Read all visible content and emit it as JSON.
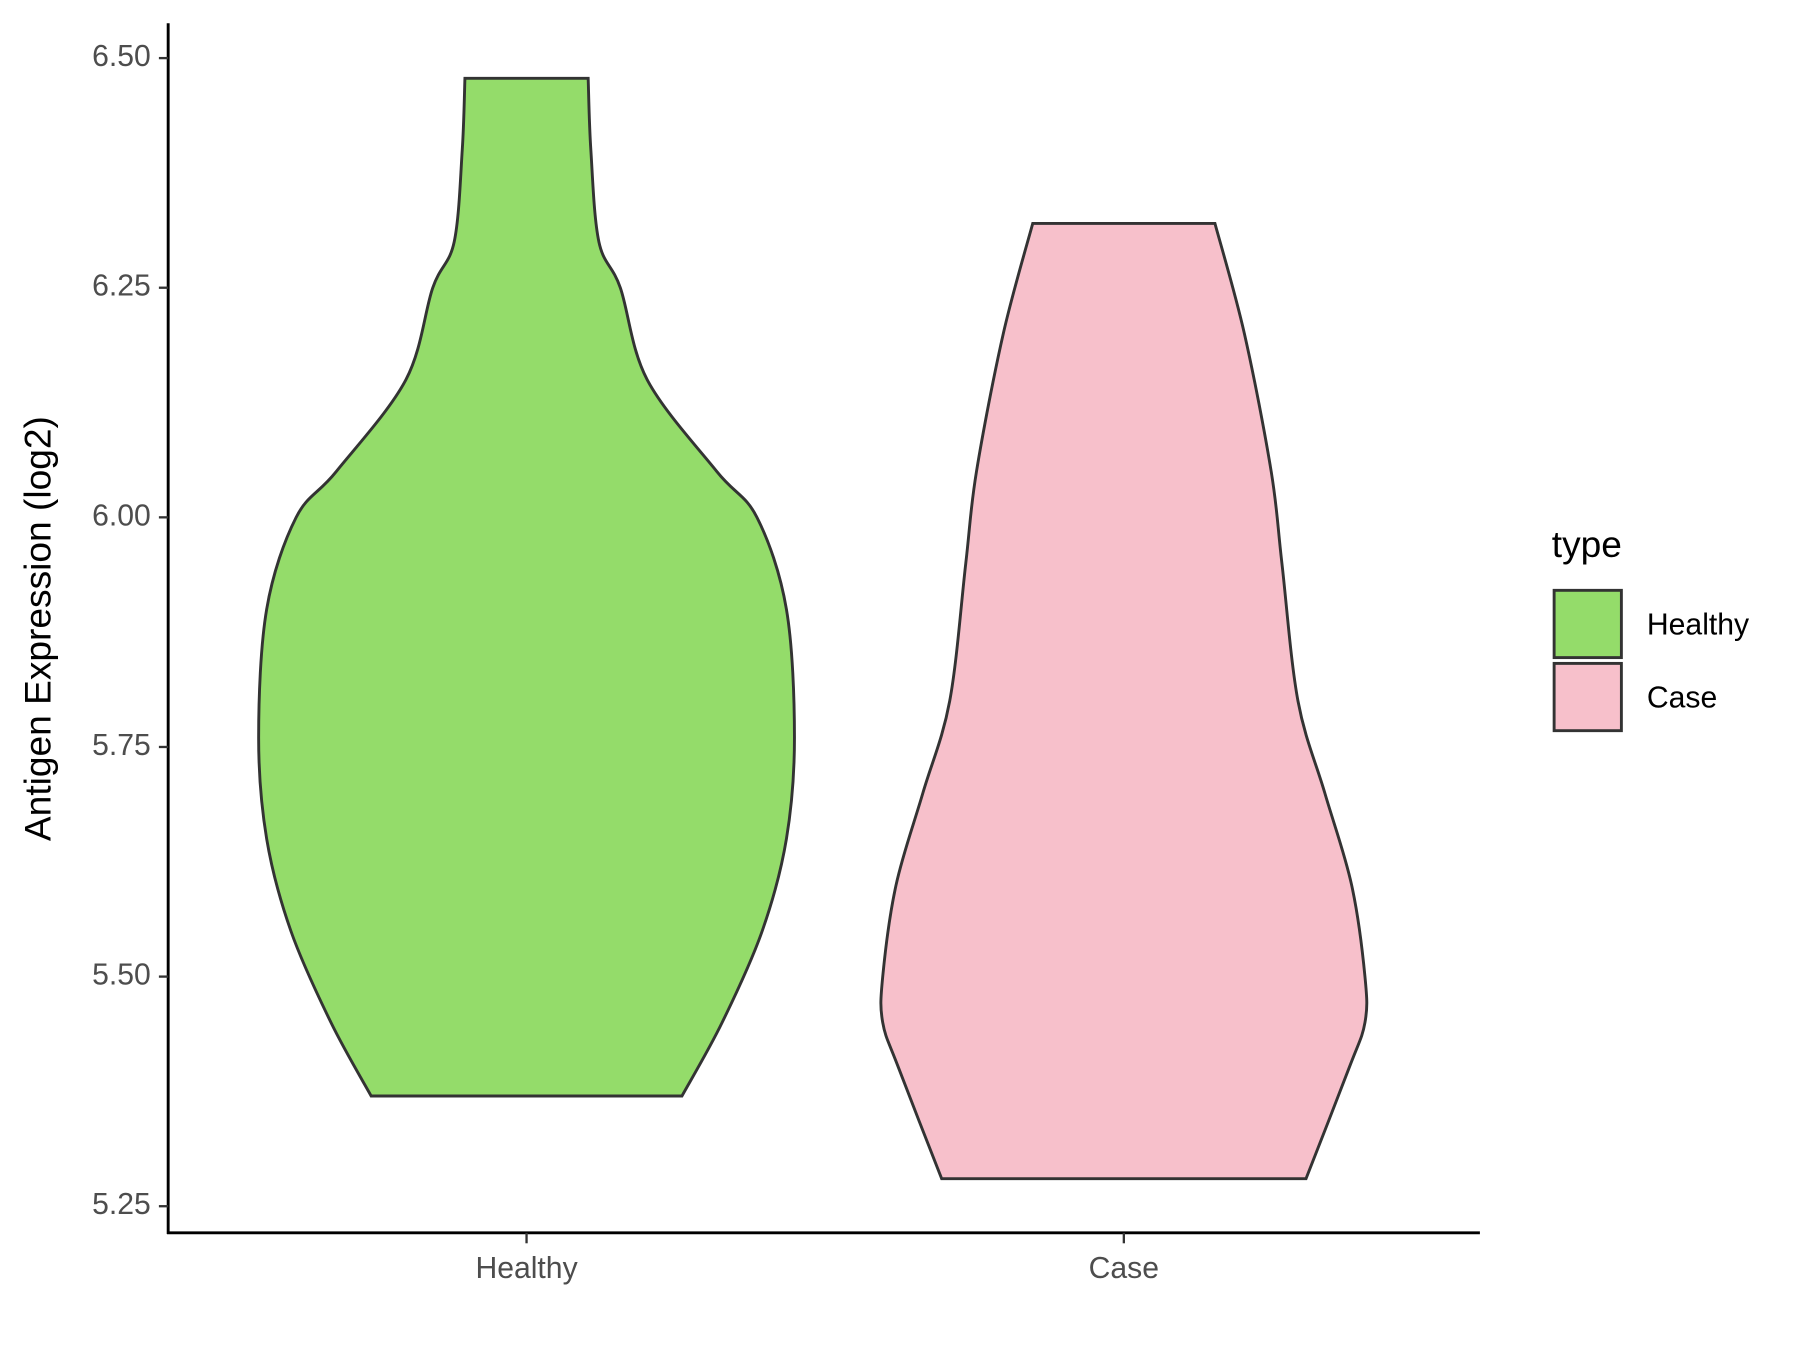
{
  "chart_data": {
    "type": "violin",
    "ylabel": "Antigen Expression (log2)",
    "categories": [
      "Healthy",
      "Case"
    ],
    "series": [
      {
        "name": "Healthy",
        "color": "#94dc6a",
        "y": [
          6.478,
          6.4,
          6.3,
          6.25,
          6.15,
          6.05,
          6.0,
          5.9,
          5.76,
          5.65,
          5.55,
          5.45,
          5.37
        ],
        "density": [
          0.23,
          0.24,
          0.27,
          0.35,
          0.45,
          0.71,
          0.86,
          0.97,
          1.0,
          0.97,
          0.88,
          0.73,
          0.58
        ]
      },
      {
        "name": "Case",
        "color": "#f7c0cb",
        "y": [
          6.32,
          6.2,
          6.05,
          5.95,
          5.8,
          5.7,
          5.6,
          5.5,
          5.45,
          5.4,
          5.28
        ],
        "density": [
          0.34,
          0.45,
          0.55,
          0.59,
          0.65,
          0.75,
          0.85,
          0.9,
          0.9,
          0.84,
          0.68
        ]
      }
    ],
    "ylim": [
      5.221,
      6.538
    ],
    "yticks": [
      5.25,
      {
        "value": 5.5,
        "label": "5.50"
      },
      5.75,
      {
        "value": 6.0,
        "label": "6.00"
      },
      6.25,
      {
        "value": 6.5,
        "label": "6.50"
      }
    ],
    "grid": false,
    "legend_title": "type",
    "legend": "right"
  }
}
